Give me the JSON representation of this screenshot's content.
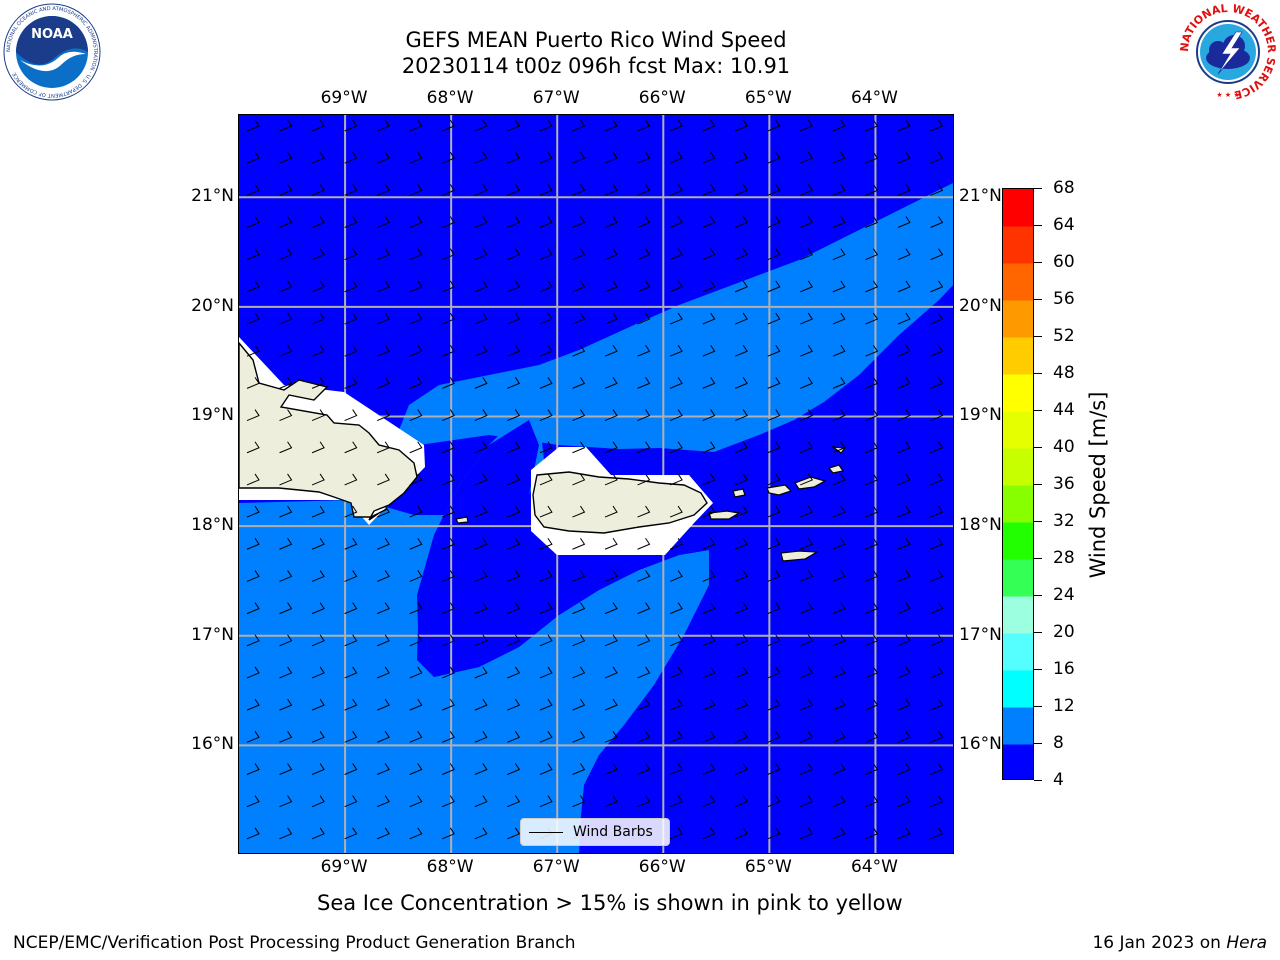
{
  "title": {
    "line1": "GEFS MEAN Puerto Rico Wind Speed",
    "line2": "20230114 t00z 096h fcst   Max: 10.91"
  },
  "axes": {
    "lon_labels": [
      "69°W",
      "68°W",
      "67°W",
      "66°W",
      "65°W",
      "64°W"
    ],
    "lat_labels": [
      "21°N",
      "20°N",
      "19°N",
      "18°N",
      "17°N",
      "16°N"
    ],
    "lon_values": [
      -69,
      -68,
      -67,
      -66,
      -65,
      -64
    ],
    "lat_values": [
      21,
      20,
      19,
      18,
      17,
      16
    ],
    "lon_range": [
      -70.0,
      -63.25
    ],
    "lat_range": [
      15.0,
      21.75
    ]
  },
  "colorbar": {
    "label": "Wind Speed [m/s]",
    "ticks": [
      "68",
      "64",
      "60",
      "56",
      "52",
      "48",
      "44",
      "40",
      "36",
      "32",
      "28",
      "24",
      "20",
      "16",
      "12",
      "8",
      "4"
    ],
    "levels": [
      4,
      8,
      12,
      16,
      20,
      24,
      28,
      32,
      36,
      40,
      44,
      48,
      52,
      56,
      60,
      64,
      68
    ],
    "colors": [
      "#0000ff",
      "#0080ff",
      "#00ffff",
      "#55ffff",
      "#9bffe0",
      "#33ff55",
      "#22ff00",
      "#88ff00",
      "#c8ff00",
      "#e6ff00",
      "#ffff00",
      "#ffcc00",
      "#ff9900",
      "#ff6600",
      "#ff3300",
      "#ff0000"
    ]
  },
  "legend": {
    "label": "Wind Barbs"
  },
  "subtitle": "Sea Ice Concentration > 15% is shown in pink to yellow",
  "footer": {
    "left": "NCEP/EMC/Verification Post Processing Product Generation Branch",
    "date": "16 Jan 2023 on",
    "machine": "Hera"
  },
  "logos": {
    "noaa_text": "NOAA",
    "noaa_ring": "NATIONAL OCEANIC AND ATMOSPHERIC ADMINISTRATION · U.S. DEPARTMENT OF COMMERCE",
    "nws_ring": "NATIONAL WEATHER SERVICE"
  },
  "style": {
    "land": "#eeeedd",
    "dark_band": "#0000ff",
    "light_band": "#0080ff"
  }
}
